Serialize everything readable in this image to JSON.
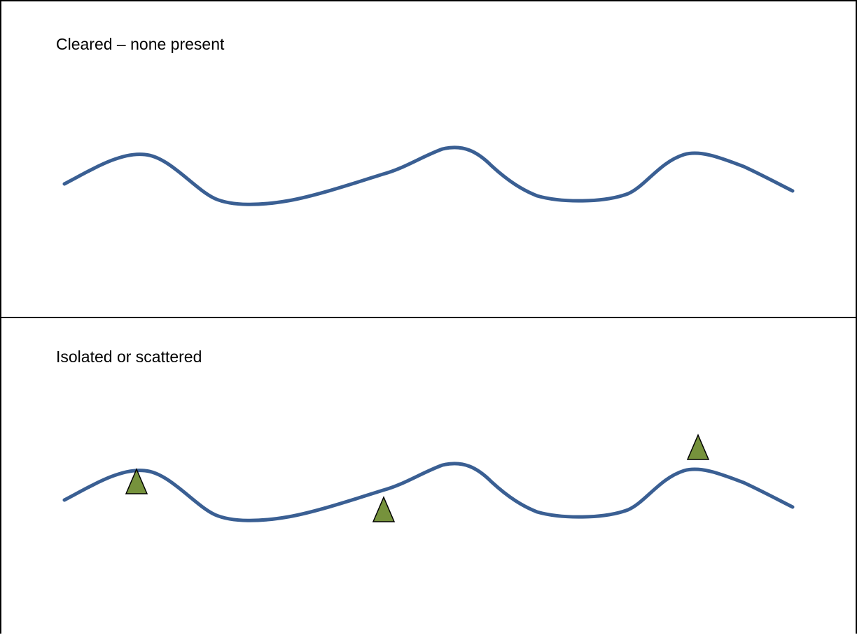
{
  "panels": [
    {
      "label": "Cleared – none present",
      "markers": []
    },
    {
      "label": "Isolated or scattered",
      "markers": [
        "tree-marker",
        "tree-marker",
        "tree-marker"
      ]
    }
  ],
  "colors": {
    "line": "#3a5f93",
    "marker_fill": "#76923c",
    "marker_stroke": "#000000",
    "border": "#000000"
  }
}
